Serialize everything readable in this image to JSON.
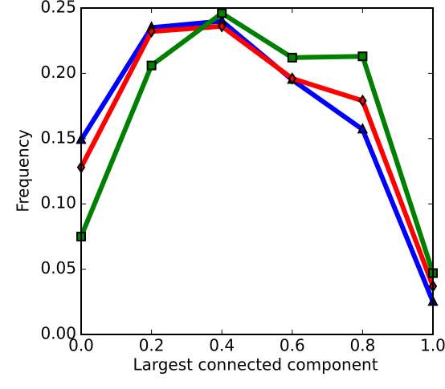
{
  "chart_data": {
    "type": "line",
    "xlabel": "Largest connected component",
    "ylabel": "Frequency",
    "x": [
      0,
      0.2,
      0.4,
      0.6,
      0.8,
      1.0
    ],
    "series": [
      {
        "color": "#0000ff",
        "marker": "triangle",
        "values": [
          0.149,
          0.235,
          0.24,
          0.195,
          0.157,
          0.025
        ]
      },
      {
        "color": "#ff0000",
        "marker": "diamond",
        "values": [
          0.128,
          0.232,
          0.236,
          0.196,
          0.179,
          0.037
        ]
      },
      {
        "color": "#008000",
        "marker": "square",
        "values": [
          0.075,
          0.206,
          0.246,
          0.212,
          0.213,
          0.047
        ]
      }
    ],
    "xlim": [
      0,
      1.0
    ],
    "ylim": [
      0,
      0.25
    ],
    "xticks": [
      {
        "value": 0,
        "label": "0.0"
      },
      0.2,
      0.4,
      0.6,
      0.8,
      {
        "value": 1.0,
        "label": "1.0"
      }
    ],
    "yticks": [
      {
        "value": 0,
        "label": "0.00"
      },
      0.05,
      {
        "value": 0.1,
        "label": "0.10"
      },
      0.15,
      {
        "value": 0.2,
        "label": "0.20"
      },
      0.25
    ]
  }
}
